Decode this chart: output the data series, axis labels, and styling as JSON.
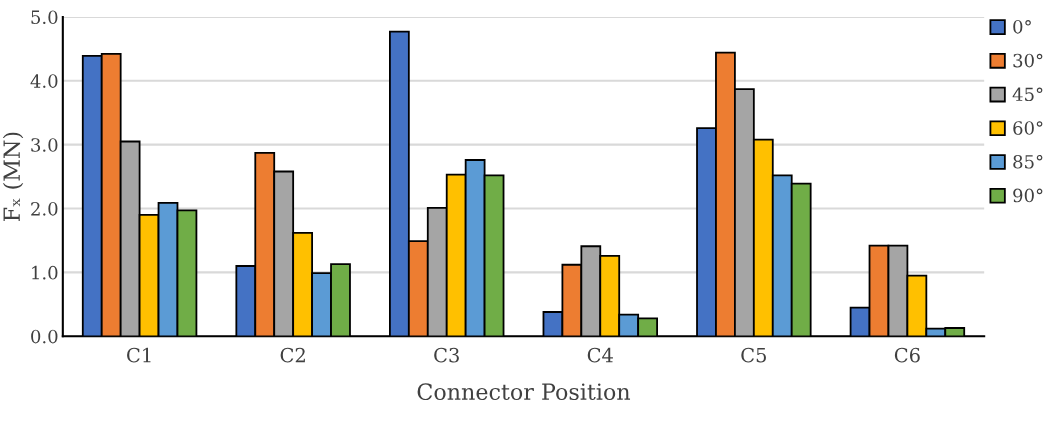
{
  "chart_data": {
    "type": "bar",
    "xlabel": "Connector Position",
    "ylabel": "Fₓ (MN)",
    "categories": [
      "C1",
      "C2",
      "C3",
      "C4",
      "C5",
      "C6"
    ],
    "series": [
      {
        "name": "0°",
        "color": "#4472c4",
        "values": [
          4.39,
          1.1,
          4.77,
          0.38,
          3.26,
          0.45
        ]
      },
      {
        "name": "30°",
        "color": "#ed7d31",
        "values": [
          4.42,
          2.87,
          1.49,
          1.12,
          4.44,
          1.42
        ]
      },
      {
        "name": "45°",
        "color": "#a5a5a5",
        "values": [
          3.05,
          2.58,
          2.01,
          1.41,
          3.87,
          1.42
        ]
      },
      {
        "name": "60°",
        "color": "#ffc000",
        "values": [
          1.9,
          1.62,
          2.53,
          1.26,
          3.08,
          0.95
        ]
      },
      {
        "name": "85°",
        "color": "#5b9bd5",
        "values": [
          2.09,
          0.99,
          2.76,
          0.34,
          2.52,
          0.12
        ]
      },
      {
        "name": "90°",
        "color": "#70ad47",
        "values": [
          1.97,
          1.13,
          2.52,
          0.28,
          2.39,
          0.13
        ]
      }
    ],
    "ylim": [
      0,
      5
    ],
    "yticks": [
      {
        "value": 0,
        "label": "0.0"
      },
      {
        "value": 1,
        "label": "1.0"
      },
      {
        "value": 2,
        "label": "2.0"
      },
      {
        "value": 3,
        "label": "3.0"
      },
      {
        "value": 4,
        "label": "4.0"
      },
      {
        "value": 5,
        "label": "5.0"
      }
    ],
    "grid": "y",
    "legend": "right"
  }
}
